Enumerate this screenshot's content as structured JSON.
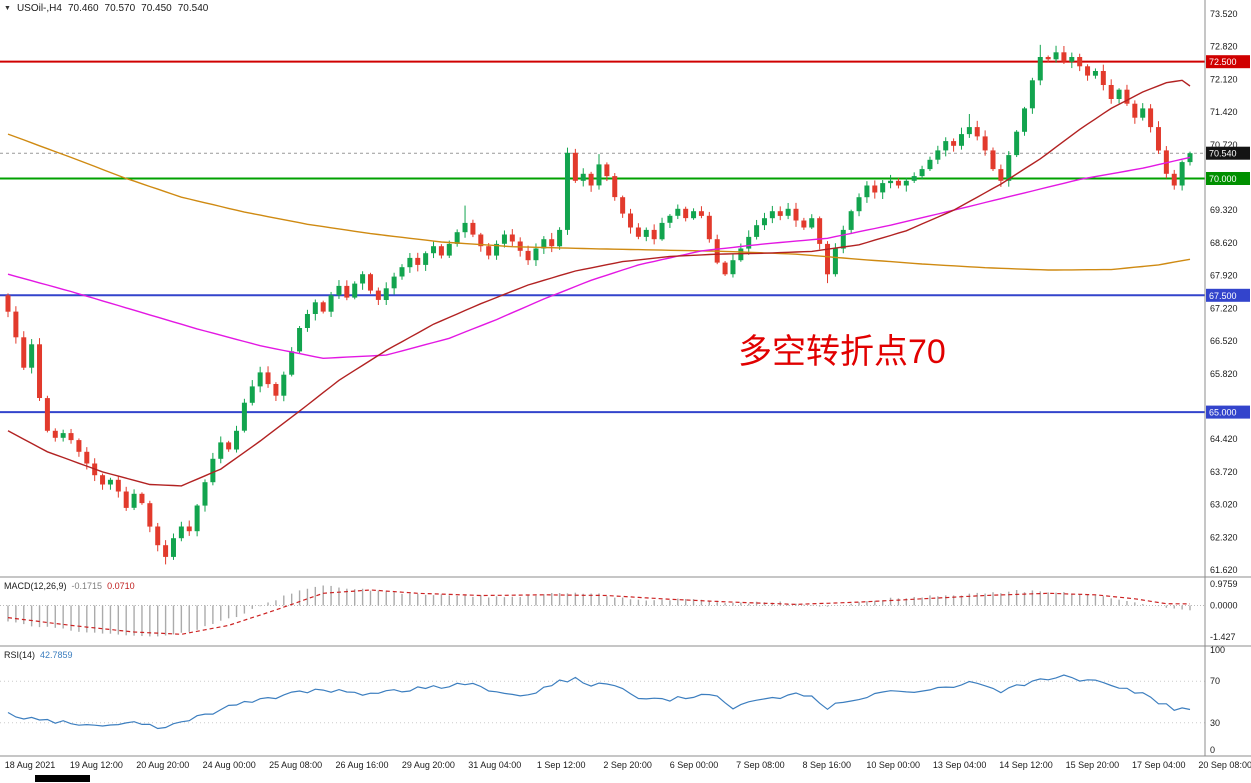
{
  "header": {
    "symbol": "USOil-,H4",
    "open": "70.460",
    "high": "70.570",
    "low": "70.450",
    "close": "70.540"
  },
  "annotation": {
    "text": "多空转折点70",
    "color": "#E10000"
  },
  "colors": {
    "bull": "#12A44E",
    "bear": "#E23A2C",
    "macd_hist": "#ABABAB",
    "macd_signal": "#CC2222",
    "rsi_line": "#3C7EBF",
    "panel_border": "#8C8C8C",
    "axis_text": "#1A1A1A",
    "current_price_line": "#999999"
  },
  "price_axis": {
    "max": 73.52,
    "min": 61.62,
    "labels": [
      [
        "73.520",
        73.52
      ],
      [
        "72.820",
        72.82
      ],
      [
        "72.120",
        72.12
      ],
      [
        "71.420",
        71.42
      ],
      [
        "70.720",
        70.72
      ],
      [
        "69.320",
        69.32
      ],
      [
        "68.620",
        68.62
      ],
      [
        "67.920",
        67.92
      ],
      [
        "67.220",
        67.22
      ],
      [
        "66.520",
        66.52
      ],
      [
        "65.820",
        65.82
      ],
      [
        "64.420",
        64.42
      ],
      [
        "63.720",
        63.72
      ],
      [
        "63.020",
        63.02
      ],
      [
        "62.320",
        62.32
      ],
      [
        "61.620",
        61.62
      ]
    ],
    "badges": [
      {
        "label": "72.500",
        "value": 72.5,
        "color": "#D00000"
      },
      {
        "label": "70.540",
        "value": 70.54,
        "color": "#141414"
      },
      {
        "label": "70.000",
        "value": 70.0,
        "color": "#009000"
      },
      {
        "label": "67.500",
        "value": 67.5,
        "color": "#3344CC"
      },
      {
        "label": "65.000",
        "value": 65.0,
        "color": "#3344CC"
      }
    ]
  },
  "hlines": [
    {
      "price": 72.5,
      "color": "#D00000",
      "width": 2
    },
    {
      "price": 70.0,
      "color": "#00A100",
      "width": 2
    },
    {
      "price": 67.5,
      "color": "#3344CC",
      "width": 2
    },
    {
      "price": 65.0,
      "color": "#3344CC",
      "width": 2
    }
  ],
  "current_price": {
    "value": 70.54,
    "label": "70.540"
  },
  "chart_data": {
    "type": "candlestick",
    "title": "USOil H4",
    "ylim": [
      61.62,
      73.52
    ],
    "first_open": 67.5,
    "closes": [
      67.15,
      66.6,
      65.95,
      66.45,
      65.3,
      64.6,
      64.45,
      64.55,
      64.4,
      64.15,
      63.9,
      63.65,
      63.45,
      63.55,
      63.3,
      62.95,
      63.25,
      63.05,
      62.55,
      62.15,
      61.9,
      62.3,
      62.55,
      62.45,
      63.0,
      63.5,
      64.0,
      64.35,
      64.2,
      64.6,
      65.2,
      65.55,
      65.85,
      65.6,
      65.35,
      65.8,
      66.3,
      66.8,
      67.1,
      67.35,
      67.15,
      67.5,
      67.7,
      67.45,
      67.75,
      67.95,
      67.6,
      67.4,
      67.65,
      67.9,
      68.1,
      68.3,
      68.15,
      68.4,
      68.55,
      68.35,
      68.6,
      68.85,
      69.05,
      68.8,
      68.55,
      68.35,
      68.6,
      68.8,
      68.65,
      68.45,
      68.25,
      68.5,
      68.7,
      68.55,
      68.9,
      70.55,
      69.95,
      70.1,
      69.85,
      70.3,
      70.05,
      69.6,
      69.25,
      68.95,
      68.75,
      68.9,
      68.7,
      69.05,
      69.2,
      69.35,
      69.15,
      69.3,
      69.2,
      68.7,
      68.2,
      67.95,
      68.25,
      68.5,
      68.75,
      69.0,
      69.15,
      69.3,
      69.2,
      69.35,
      69.1,
      68.95,
      69.15,
      68.6,
      67.95,
      68.5,
      68.9,
      69.3,
      69.6,
      69.85,
      69.7,
      69.9,
      69.95,
      69.85,
      69.95,
      70.05,
      70.2,
      70.4,
      70.6,
      70.8,
      70.7,
      70.95,
      71.1,
      70.9,
      70.6,
      70.2,
      69.95,
      70.5,
      71.0,
      71.5,
      72.1,
      72.6,
      72.55,
      72.7,
      72.5,
      72.6,
      72.4,
      72.2,
      72.3,
      72.0,
      71.7,
      71.9,
      71.6,
      71.3,
      71.5,
      71.1,
      70.6,
      70.1,
      69.85,
      70.35,
      70.54
    ],
    "wick_overrides": {
      "20": {
        "low": 61.74
      },
      "58": {
        "high": 69.42
      },
      "71": {
        "high": 70.66
      },
      "75": {
        "high": 70.52
      },
      "104": {
        "low": 67.76
      },
      "122": {
        "high": 71.38
      },
      "126": {
        "low": 69.82
      },
      "131": {
        "high": 72.86
      },
      "133": {
        "high": 72.84
      },
      "148": {
        "low": 69.76
      }
    },
    "moving_averages": [
      {
        "name": "ma-slow-orange-line",
        "color": "#CF8A12",
        "points": [
          [
            0,
            70.95
          ],
          [
            8,
            70.45
          ],
          [
            15,
            70.0
          ],
          [
            22,
            69.6
          ],
          [
            30,
            69.28
          ],
          [
            38,
            69.02
          ],
          [
            46,
            68.82
          ],
          [
            55,
            68.64
          ],
          [
            64,
            68.54
          ],
          [
            73,
            68.5
          ],
          [
            82,
            68.47
          ],
          [
            91,
            68.44
          ],
          [
            100,
            68.38
          ],
          [
            108,
            68.27
          ],
          [
            116,
            68.17
          ],
          [
            124,
            68.09
          ],
          [
            132,
            68.04
          ],
          [
            140,
            68.05
          ],
          [
            146,
            68.15
          ],
          [
            150,
            68.27
          ]
        ]
      },
      {
        "name": "ma-mid-magenta-line",
        "color": "#E318E3",
        "points": [
          [
            0,
            67.95
          ],
          [
            8,
            67.58
          ],
          [
            16,
            67.18
          ],
          [
            24,
            66.78
          ],
          [
            32,
            66.42
          ],
          [
            40,
            66.15
          ],
          [
            48,
            66.22
          ],
          [
            56,
            66.58
          ],
          [
            62,
            66.98
          ],
          [
            68,
            67.42
          ],
          [
            74,
            67.82
          ],
          [
            80,
            68.15
          ],
          [
            88,
            68.45
          ],
          [
            96,
            68.6
          ],
          [
            104,
            68.72
          ],
          [
            112,
            69.0
          ],
          [
            120,
            69.32
          ],
          [
            128,
            69.65
          ],
          [
            136,
            69.98
          ],
          [
            144,
            70.22
          ],
          [
            150,
            70.45
          ]
        ]
      },
      {
        "name": "ma-fast-crimson-line",
        "color": "#B22222",
        "points": [
          [
            0,
            64.6
          ],
          [
            5,
            64.15
          ],
          [
            12,
            63.72
          ],
          [
            18,
            63.45
          ],
          [
            22,
            63.42
          ],
          [
            27,
            63.78
          ],
          [
            32,
            64.38
          ],
          [
            37,
            65.02
          ],
          [
            42,
            65.68
          ],
          [
            48,
            66.32
          ],
          [
            54,
            66.88
          ],
          [
            60,
            67.32
          ],
          [
            66,
            67.72
          ],
          [
            72,
            68.02
          ],
          [
            78,
            68.22
          ],
          [
            84,
            68.33
          ],
          [
            90,
            68.38
          ],
          [
            96,
            68.4
          ],
          [
            102,
            68.44
          ],
          [
            108,
            68.58
          ],
          [
            114,
            68.88
          ],
          [
            120,
            69.32
          ],
          [
            126,
            69.88
          ],
          [
            131,
            70.42
          ],
          [
            136,
            71.05
          ],
          [
            140,
            71.5
          ],
          [
            144,
            71.85
          ],
          [
            147,
            72.05
          ],
          [
            149,
            72.1
          ],
          [
            150,
            71.98
          ]
        ]
      }
    ],
    "indicators": {
      "macd": {
        "label": "MACD(12,26,9)",
        "value_main": "-0.1715",
        "value_signal": "0.0710",
        "axis_labels": [
          "0.9759",
          "0.0000",
          "-1.427"
        ],
        "axis_values": [
          0.9759,
          0,
          -1.427
        ],
        "scale_max": 1.15,
        "scale_min": -1.65,
        "main_anchors": [
          [
            0,
            -0.75
          ],
          [
            6,
            -1.05
          ],
          [
            12,
            -1.25
          ],
          [
            18,
            -1.42
          ],
          [
            24,
            -1.1
          ],
          [
            30,
            -0.35
          ],
          [
            36,
            0.55
          ],
          [
            40,
            0.9
          ],
          [
            46,
            0.7
          ],
          [
            52,
            0.5
          ],
          [
            58,
            0.45
          ],
          [
            64,
            0.35
          ],
          [
            70,
            0.6
          ],
          [
            74,
            0.55
          ],
          [
            80,
            0.25
          ],
          [
            86,
            0.3
          ],
          [
            92,
            0.1
          ],
          [
            98,
            0.15
          ],
          [
            104,
            -0.05
          ],
          [
            110,
            0.25
          ],
          [
            116,
            0.4
          ],
          [
            122,
            0.5
          ],
          [
            128,
            0.65
          ],
          [
            134,
            0.6
          ],
          [
            138,
            0.45
          ],
          [
            142,
            0.25
          ],
          [
            146,
            -0.05
          ],
          [
            150,
            -0.17
          ]
        ],
        "signal_anchors": [
          [
            0,
            -0.55
          ],
          [
            8,
            -0.9
          ],
          [
            16,
            -1.2
          ],
          [
            22,
            -1.3
          ],
          [
            28,
            -0.9
          ],
          [
            34,
            -0.2
          ],
          [
            40,
            0.55
          ],
          [
            46,
            0.7
          ],
          [
            52,
            0.55
          ],
          [
            60,
            0.45
          ],
          [
            68,
            0.48
          ],
          [
            76,
            0.45
          ],
          [
            84,
            0.28
          ],
          [
            92,
            0.15
          ],
          [
            100,
            0.05
          ],
          [
            108,
            0.15
          ],
          [
            116,
            0.3
          ],
          [
            124,
            0.45
          ],
          [
            132,
            0.55
          ],
          [
            138,
            0.48
          ],
          [
            143,
            0.3
          ],
          [
            147,
            0.08
          ],
          [
            150,
            0.07
          ]
        ]
      },
      "rsi": {
        "label": "RSI(14)",
        "value": "42.7859",
        "axis_labels": [
          [
            "100",
            100
          ],
          [
            "70",
            70
          ],
          [
            "30",
            30
          ],
          [
            "0",
            0
          ]
        ],
        "levels": [
          70,
          30
        ],
        "anchors": [
          [
            0,
            38
          ],
          [
            4,
            33
          ],
          [
            8,
            30
          ],
          [
            12,
            28
          ],
          [
            16,
            30
          ],
          [
            20,
            25
          ],
          [
            24,
            35
          ],
          [
            28,
            45
          ],
          [
            32,
            52
          ],
          [
            36,
            58
          ],
          [
            40,
            62
          ],
          [
            44,
            58
          ],
          [
            48,
            60
          ],
          [
            52,
            63
          ],
          [
            56,
            65
          ],
          [
            58,
            68
          ],
          [
            62,
            60
          ],
          [
            66,
            57
          ],
          [
            70,
            70
          ],
          [
            72,
            72
          ],
          [
            74,
            66
          ],
          [
            76,
            68
          ],
          [
            80,
            55
          ],
          [
            84,
            52
          ],
          [
            88,
            57
          ],
          [
            90,
            55
          ],
          [
            92,
            45
          ],
          [
            96,
            52
          ],
          [
            100,
            58
          ],
          [
            102,
            55
          ],
          [
            104,
            44
          ],
          [
            106,
            50
          ],
          [
            110,
            58
          ],
          [
            114,
            60
          ],
          [
            118,
            64
          ],
          [
            122,
            68
          ],
          [
            126,
            60
          ],
          [
            128,
            65
          ],
          [
            131,
            72
          ],
          [
            134,
            75
          ],
          [
            136,
            72
          ],
          [
            138,
            70
          ],
          [
            140,
            66
          ],
          [
            142,
            62
          ],
          [
            144,
            58
          ],
          [
            146,
            50
          ],
          [
            148,
            43
          ],
          [
            150,
            42.79
          ]
        ]
      }
    },
    "time_axis": {
      "labels": [
        "18 Aug 2021",
        "19 Aug 12:00",
        "20 Aug 20:00",
        "24 Aug 00:00",
        "25 Aug 08:00",
        "26 Aug 16:00",
        "29 Aug 20:00",
        "31 Aug 04:00",
        "1 Sep 12:00",
        "2 Sep 20:00",
        "6 Sep 00:00",
        "7 Sep 08:00",
        "8 Sep 16:00",
        "10 Sep 00:00",
        "13 Sep 04:00",
        "14 Sep 12:00",
        "15 Sep 20:00",
        "17 Sep 04:00",
        "20 Sep 08:00"
      ]
    }
  }
}
